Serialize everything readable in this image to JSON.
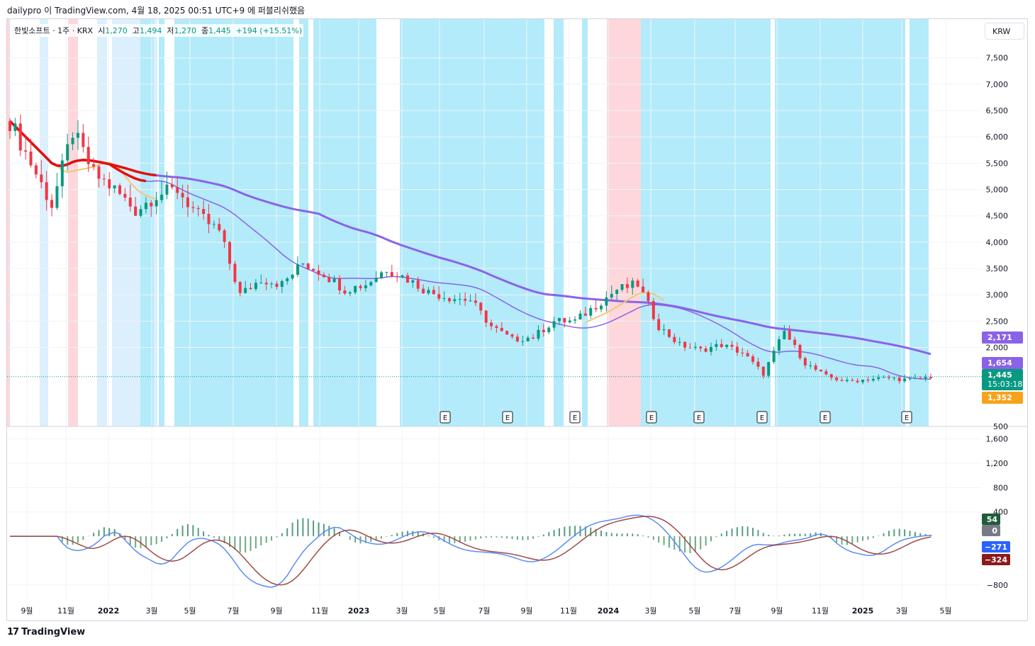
{
  "header": {
    "publish_line": "dailypro 이 TradingView.com, 4월 18, 2025 00:51 UTC+9 에 퍼블리쉬했음"
  },
  "legend": {
    "symbol": "한빛소프트 · 1주 · KRX",
    "open_label": "시",
    "open": "1,270",
    "high_label": "고",
    "high": "1,494",
    "low_label": "저",
    "low": "1,270",
    "close_label": "종",
    "close": "1,445",
    "change": "+194 (+15.51%)"
  },
  "currency": "KRW",
  "footer": {
    "logo_text": "17",
    "brand": "TradingView"
  },
  "colors": {
    "up": "#089981",
    "down": "#f23645",
    "bg_blue": "#b3ebfa",
    "bg_lightblue": "#dbf0fc",
    "bg_pink": "#fdd7db",
    "ma_red": "#e3100f",
    "ma_orange": "#f0c67a",
    "ma_purple": "#8a63e8",
    "macd_line": "#5b8cf5",
    "signal_line": "#a04a46",
    "hist_pos": "#1e7d52",
    "hist_neg": "#3d8b5a"
  },
  "chart_data": [
    {
      "type": "candlestick",
      "interval": "1주",
      "currency": "KRW",
      "x_ticks": [
        "9월",
        "11월",
        "2022",
        "3월",
        "5월",
        "7월",
        "9월",
        "11월",
        "2023",
        "3월",
        "5월",
        "7월",
        "9월",
        "11월",
        "2024",
        "3월",
        "5월",
        "7월",
        "9월",
        "11월",
        "2025",
        "3월",
        "5월"
      ],
      "y_ticks": [
        7500,
        7000,
        6500,
        6000,
        5500,
        5000,
        4500,
        4000,
        3500,
        3000,
        2500,
        2000,
        500
      ],
      "ylim": [
        500,
        7900
      ],
      "close_path": [
        {
          "date": "2021-08",
          "close": 6300
        },
        {
          "date": "2021-09",
          "close": 5500
        },
        {
          "date": "2021-10",
          "close": 4700
        },
        {
          "date": "2021-11",
          "close": 6100
        },
        {
          "date": "2021-12",
          "close": 5300
        },
        {
          "date": "2022-01",
          "close": 5000
        },
        {
          "date": "2022-02",
          "close": 4600
        },
        {
          "date": "2022-03",
          "close": 4900
        },
        {
          "date": "2022-04",
          "close": 5000
        },
        {
          "date": "2022-05",
          "close": 4500
        },
        {
          "date": "2022-06",
          "close": 4200
        },
        {
          "date": "2022-07",
          "close": 3000
        },
        {
          "date": "2022-08",
          "close": 3300
        },
        {
          "date": "2022-09",
          "close": 3200
        },
        {
          "date": "2022-10",
          "close": 3600
        },
        {
          "date": "2022-11",
          "close": 3400
        },
        {
          "date": "2022-12",
          "close": 3100
        },
        {
          "date": "2023-01",
          "close": 3200
        },
        {
          "date": "2023-02",
          "close": 3500
        },
        {
          "date": "2023-03",
          "close": 3300
        },
        {
          "date": "2023-04",
          "close": 3050
        },
        {
          "date": "2023-05",
          "close": 2950
        },
        {
          "date": "2023-06",
          "close": 2900
        },
        {
          "date": "2023-07",
          "close": 2400
        },
        {
          "date": "2023-08",
          "close": 2150
        },
        {
          "date": "2023-09",
          "close": 2200
        },
        {
          "date": "2023-10",
          "close": 2500
        },
        {
          "date": "2023-11",
          "close": 2500
        },
        {
          "date": "2023-12",
          "close": 2800
        },
        {
          "date": "2024-01",
          "close": 3100
        },
        {
          "date": "2024-02",
          "close": 3200
        },
        {
          "date": "2024-03",
          "close": 2400
        },
        {
          "date": "2024-04",
          "close": 2050
        },
        {
          "date": "2024-05",
          "close": 1950
        },
        {
          "date": "2024-06",
          "close": 2050
        },
        {
          "date": "2024-07",
          "close": 1900
        },
        {
          "date": "2024-08",
          "close": 1500
        },
        {
          "date": "2024-09",
          "close": 2300
        },
        {
          "date": "2024-10",
          "close": 1700
        },
        {
          "date": "2024-11",
          "close": 1450
        },
        {
          "date": "2024-12",
          "close": 1350
        },
        {
          "date": "2025-01",
          "close": 1400
        },
        {
          "date": "2025-02",
          "close": 1420
        },
        {
          "date": "2025-03",
          "close": 1380
        },
        {
          "date": "2025-04",
          "close": 1445
        }
      ],
      "price_labels": [
        {
          "value": "2,171",
          "color": "#8a63e8"
        },
        {
          "value": "1,654",
          "color": "#8a63e8"
        },
        {
          "value": "1,445",
          "sub": "15:03:18",
          "color": "#089981"
        },
        {
          "value": "1,352",
          "color": "#f7a21b"
        }
      ],
      "earnings_markers": [
        "E",
        "E",
        "E",
        "E",
        "E",
        "E",
        "E",
        "E"
      ]
    },
    {
      "type": "macd",
      "y_ticks": [
        1600,
        1200,
        800,
        400,
        -800
      ],
      "ylim": [
        -1000,
        1700
      ],
      "values": [
        {
          "label": "54",
          "color": "#1e5c3a"
        },
        {
          "label": "0",
          "color": "#787b86"
        },
        {
          "label": "−271",
          "color": "#2962ff"
        },
        {
          "label": "−324",
          "color": "#8b1a1a"
        }
      ]
    }
  ]
}
